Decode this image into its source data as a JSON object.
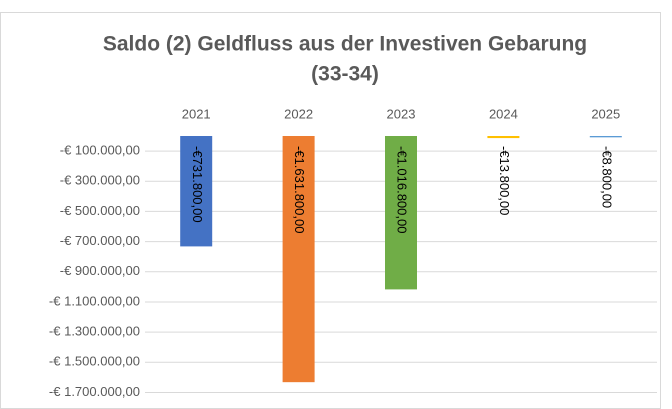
{
  "chart_data": {
    "type": "bar",
    "title": [
      "Saldo (2) Geldfluss aus der Investiven Gebarung",
      "(33-34)"
    ],
    "categories": [
      "2021",
      "2022",
      "2023",
      "2024",
      "2025"
    ],
    "values": [
      -731800,
      -1631800,
      -1016800,
      -13800,
      -8800
    ],
    "value_labels": [
      "-€731.800,00",
      "-€1.631.800,00",
      "-€1.016.800,00",
      "-€13.800,00",
      "-€8.800,00"
    ],
    "colors": [
      "#4472c4",
      "#ed7d31",
      "#70ad47",
      "#ffc000",
      "#5b9bd5"
    ],
    "ylim": [
      -1750000,
      0
    ],
    "yticks": [
      {
        "value": -100000,
        "label": "-€ 100.000,00"
      },
      {
        "value": -300000,
        "label": "-€ 300.000,00"
      },
      {
        "value": -500000,
        "label": "-€ 500.000,00"
      },
      {
        "value": -700000,
        "label": "-€ 700.000,00"
      },
      {
        "value": -900000,
        "label": "-€ 900.000,00"
      },
      {
        "value": -1100000,
        "label": "-€ 1.100.000,00"
      },
      {
        "value": -1300000,
        "label": "-€ 1.300.000,00"
      },
      {
        "value": -1500000,
        "label": "-€ 1.500.000,00"
      },
      {
        "value": -1700000,
        "label": "-€ 1.700.000,00"
      }
    ],
    "grid": true
  }
}
